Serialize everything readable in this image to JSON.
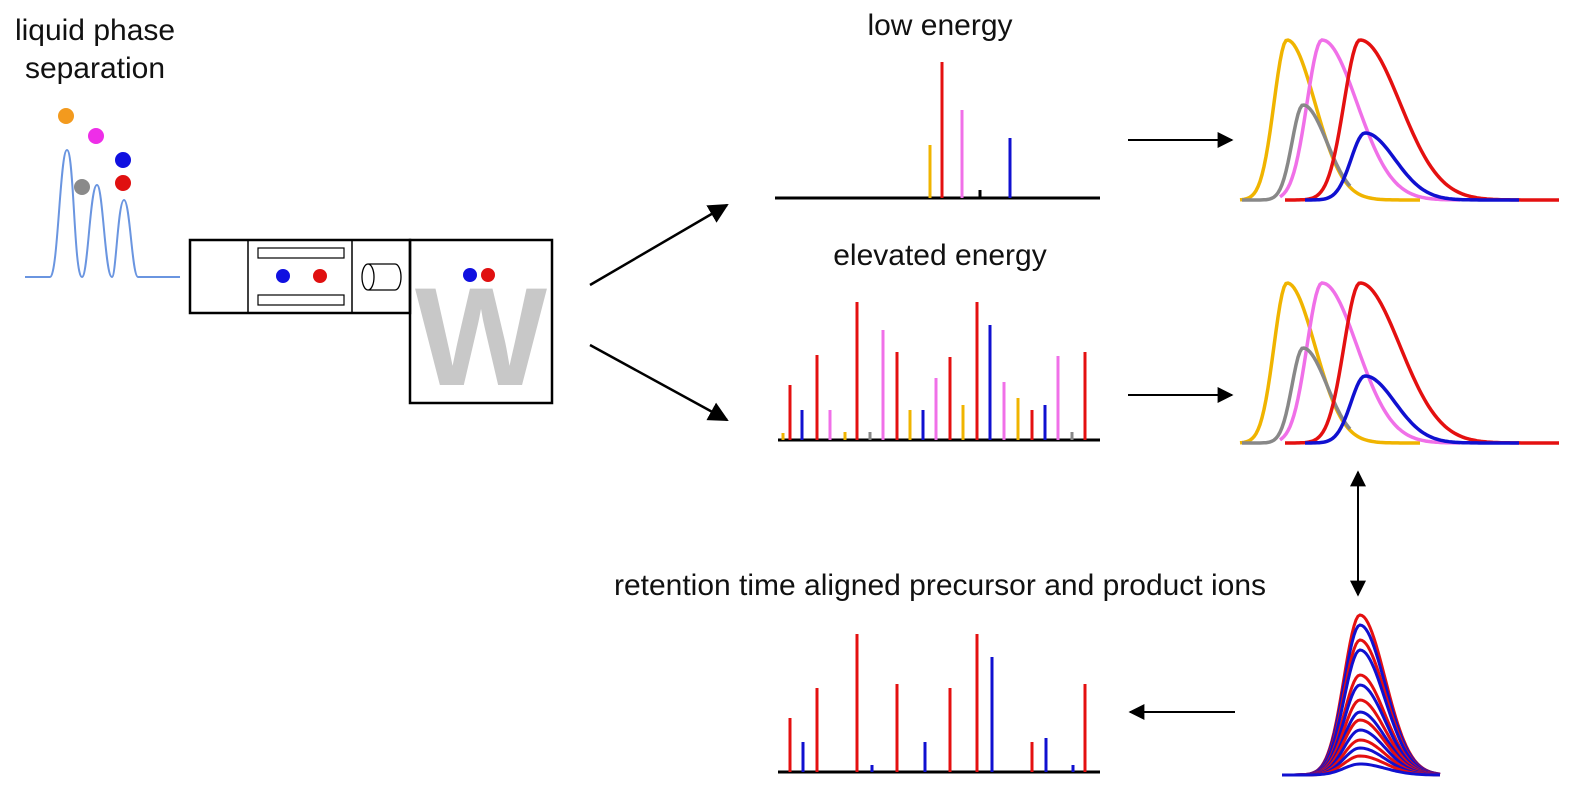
{
  "panels": {
    "separation": {
      "title": [
        "liquid phase",
        "separation"
      ]
    },
    "instrument": {
      "logo": "W"
    },
    "low_energy": {
      "title": "low energy"
    },
    "elevated_energy": {
      "title": "elevated energy"
    },
    "aligned": {
      "title": "retention time aligned precursor and product ions"
    }
  }
}
